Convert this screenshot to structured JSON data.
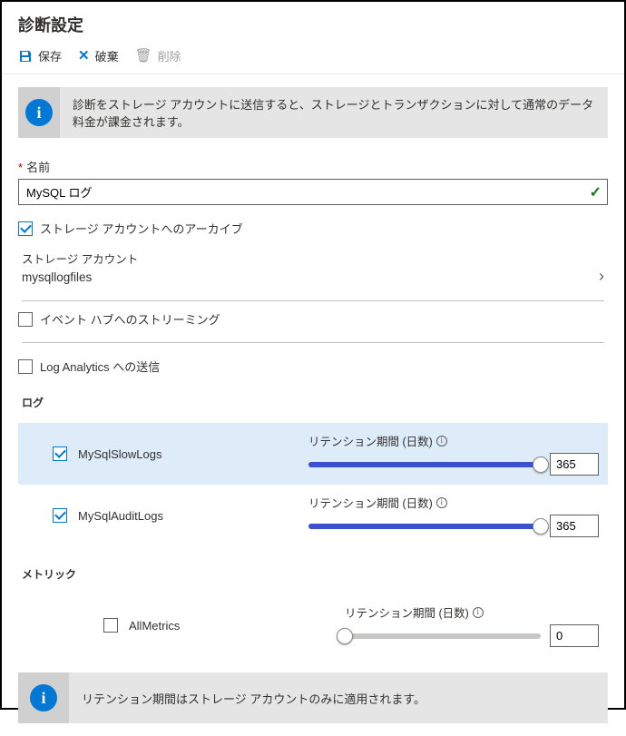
{
  "header": {
    "title": "診断設定"
  },
  "toolbar": {
    "save": "保存",
    "discard": "破棄",
    "delete": "削除"
  },
  "info1": "診断をストレージ アカウントに送信すると、ストレージとトランザクションに対して通常のデータ料金が課金されます。",
  "name_label": "名前",
  "name_value": "MySQL ログ",
  "archive_storage": "ストレージ アカウントへのアーカイブ",
  "storage_account_label": "ストレージ アカウント",
  "storage_account_value": "mysqllogfiles",
  "stream_eventhub": "イベント ハブへのストリーミング",
  "send_loganalytics": "Log Analytics への送信",
  "log_section": "ログ",
  "metric_section": "メトリック",
  "retention_label": "リテンション期間 (日数)",
  "retention_label_metric": "リテンション期間 (日数)",
  "logs": [
    {
      "name": "MySqlSlowLogs",
      "checked": true,
      "value": "365",
      "pct": 100,
      "selected": true
    },
    {
      "name": "MySqlAuditLogs",
      "checked": true,
      "value": "365",
      "pct": 100,
      "selected": false
    }
  ],
  "metrics": [
    {
      "name": "AllMetrics",
      "checked": false,
      "value": "0",
      "pct": 0,
      "selected": false
    }
  ],
  "info2": "リテンション期間はストレージ アカウントのみに適用されます。",
  "colors": {
    "accent": "#0078d4",
    "slider_fill": "#3b50ce",
    "selected_row": "#deecf9",
    "infobar_bg": "#e5e5e5",
    "infobar_icon_bg": "#d0d0d0"
  }
}
